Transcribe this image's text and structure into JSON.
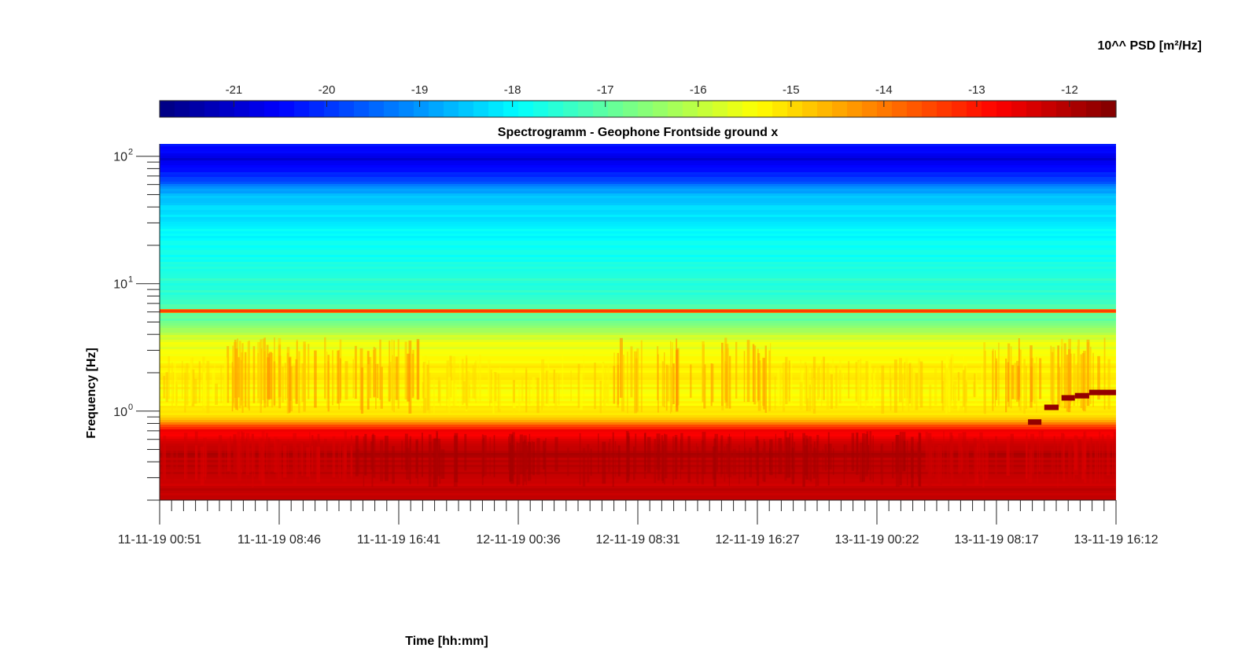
{
  "chart_data": {
    "type": "heatmap",
    "title": "Spectrogramm - Geophone Frontside ground x",
    "xlabel": "Time [hh:mm]",
    "ylabel": "Frequency [Hz]",
    "colorbar_label": "10^^ PSD [m²/Hz]",
    "colormap": "jet",
    "clim": [
      -21.8,
      -11.5
    ],
    "colorbar_ticks": [
      "-21",
      "-20",
      "-19",
      "-18",
      "-17",
      "-16",
      "-15",
      "-14",
      "-13",
      "-12"
    ],
    "colorbar_tick_values": [
      -21,
      -20,
      -19,
      -18,
      -17,
      -16,
      -15,
      -14,
      -13,
      -12
    ],
    "x_tick_labels": [
      "11-11-19 00:51",
      "11-11-19 08:46",
      "11-11-19 16:41",
      "12-11-19 00:36",
      "12-11-19 08:31",
      "12-11-19 16:27",
      "13-11-19 00:22",
      "13-11-19 08:17",
      "13-11-19 16:12"
    ],
    "x_range": [
      "11-11-19 00:51",
      "13-11-19 16:12"
    ],
    "y_scale": "log",
    "ylim": [
      0.2,
      125
    ],
    "y_tick_values": [
      1,
      10,
      100
    ],
    "y_tick_labels": [
      {
        "base": "10",
        "exp": "0"
      },
      {
        "base": "10",
        "exp": "1"
      },
      {
        "base": "10",
        "exp": "2"
      }
    ],
    "features": {
      "persistent_line_hz": 6.1,
      "low_frequency_band_hz": [
        0.2,
        0.75
      ],
      "stepped_tone_hz": [
        0.82,
        1.07,
        1.27,
        1.32,
        1.4
      ]
    },
    "grid": false,
    "legend": "colorbar-top"
  }
}
